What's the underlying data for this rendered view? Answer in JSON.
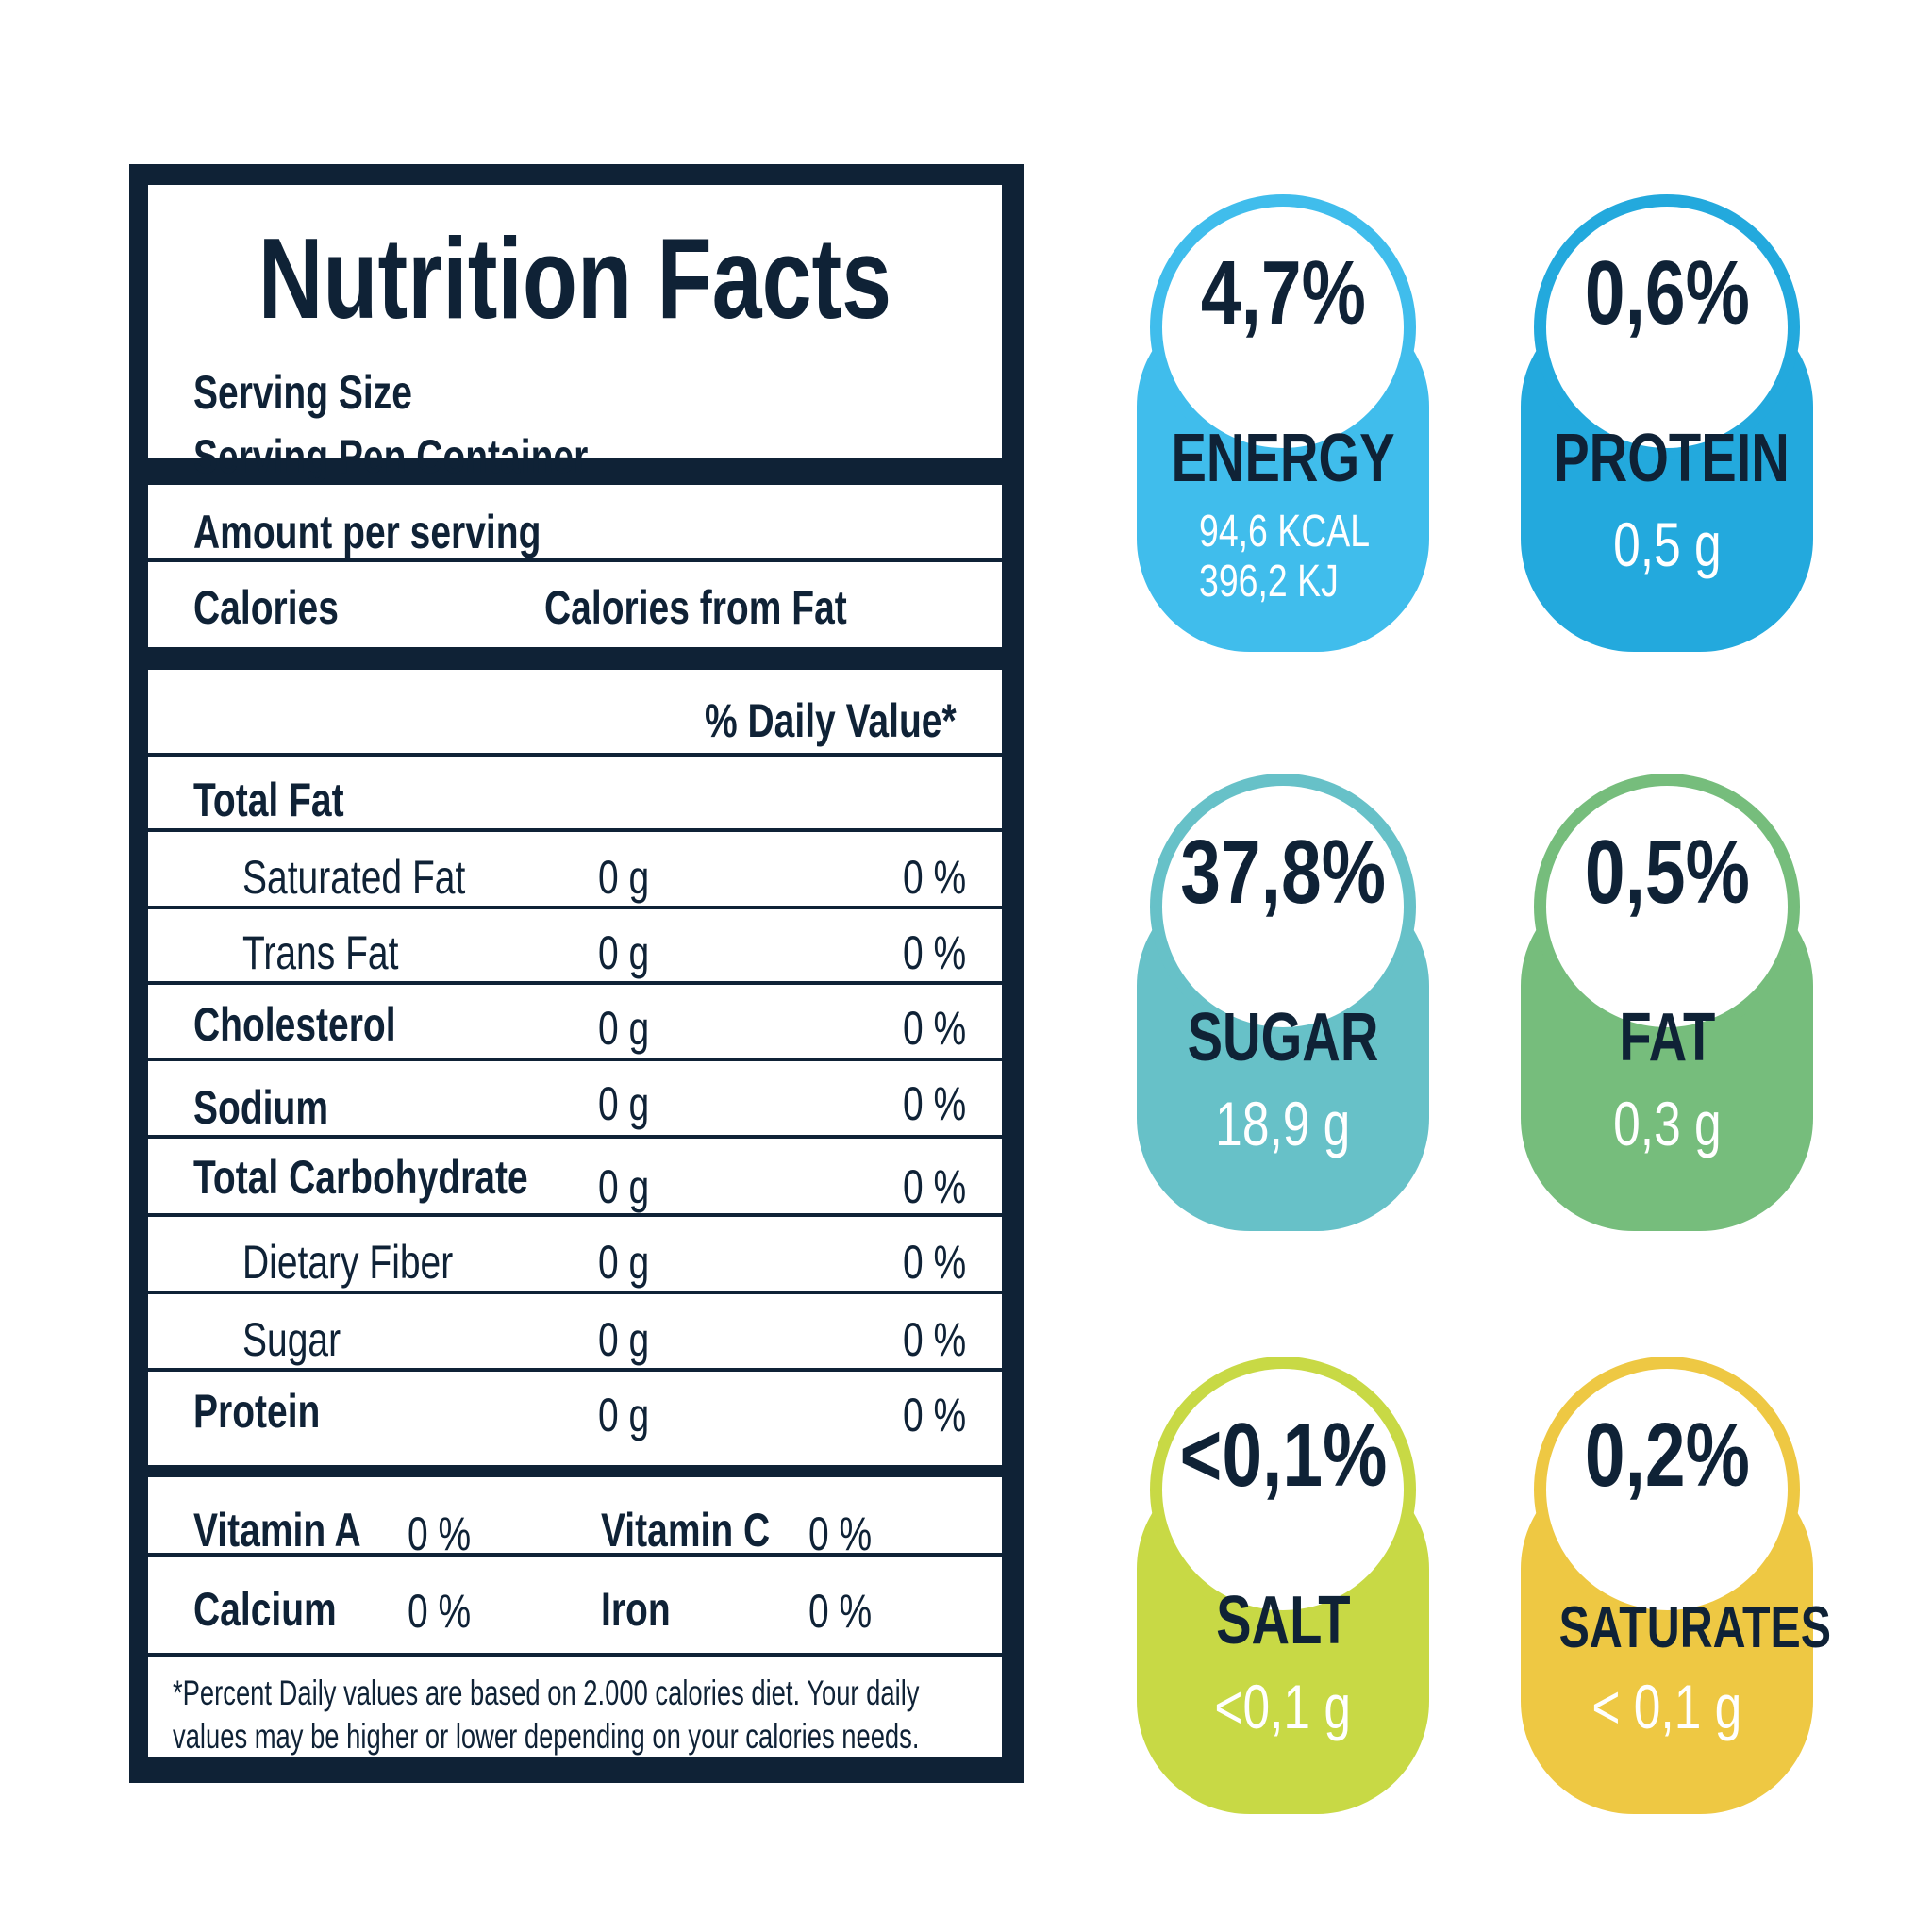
{
  "label": {
    "title": "Nutrition Facts",
    "serving_size": "Serving Size",
    "servings_per_container": "Serving Pen Container",
    "amount_per_serving": "Amount per serving",
    "calories": "Calories",
    "calories_from_fat": "Calories from Fat",
    "daily_value_header": "% Daily Value*",
    "total_fat": "Total Fat",
    "rows": [
      {
        "name": "Saturated Fat",
        "amount": "0 g",
        "dv": "0 %"
      },
      {
        "name": "Trans Fat",
        "amount": "0 g",
        "dv": "0 %"
      },
      {
        "name": "Cholesterol",
        "amount": "0 g",
        "dv": "0 %"
      },
      {
        "name": "Sodium",
        "amount": "0 g",
        "dv": "0 %"
      },
      {
        "name": "Total Carbohydrate",
        "amount": "0 g",
        "dv": "0 %"
      },
      {
        "name": "Dietary Fiber",
        "amount": "0 g",
        "dv": "0 %"
      },
      {
        "name": "Sugar",
        "amount": "0 g",
        "dv": "0 %"
      },
      {
        "name": "Protein",
        "amount": "0 g",
        "dv": "0 %"
      }
    ],
    "vitamins": [
      {
        "name": "Vitamin A",
        "dv": "0 %"
      },
      {
        "name": "Vitamin C",
        "dv": "0 %"
      },
      {
        "name": "Calcium",
        "dv": "0 %"
      },
      {
        "name": "Iron",
        "dv": "0 %"
      }
    ],
    "footnote_line1": "*Percent Daily values are based on 2.000 calories diet. Your daily",
    "footnote_line2": "values may be higher or lower depending on your calories needs."
  },
  "badges": [
    {
      "percent": "4,7%",
      "name": "ENERGY",
      "value_line1": "94,6 KCAL",
      "value_line2": "396,2 KJ",
      "color": "#40bdec"
    },
    {
      "percent": "0,6%",
      "name": "PROTEIN",
      "value": "0,5 g",
      "color": "#23a9dd"
    },
    {
      "percent": "37,8%",
      "name": "SUGAR",
      "value": "18,9 g",
      "color": "#67c1c8"
    },
    {
      "percent": "0,5%",
      "name": "FAT",
      "value": "0,3 g",
      "color": "#76bd7c"
    },
    {
      "percent": "<0,1%",
      "name": "SALT",
      "value": "<0,1 g",
      "color": "#c8d945"
    },
    {
      "percent": "0,2%",
      "name": "SATURATES",
      "value": "< 0,1 g",
      "color": "#eec843"
    }
  ],
  "colors": {
    "navy": "#0f2236"
  }
}
